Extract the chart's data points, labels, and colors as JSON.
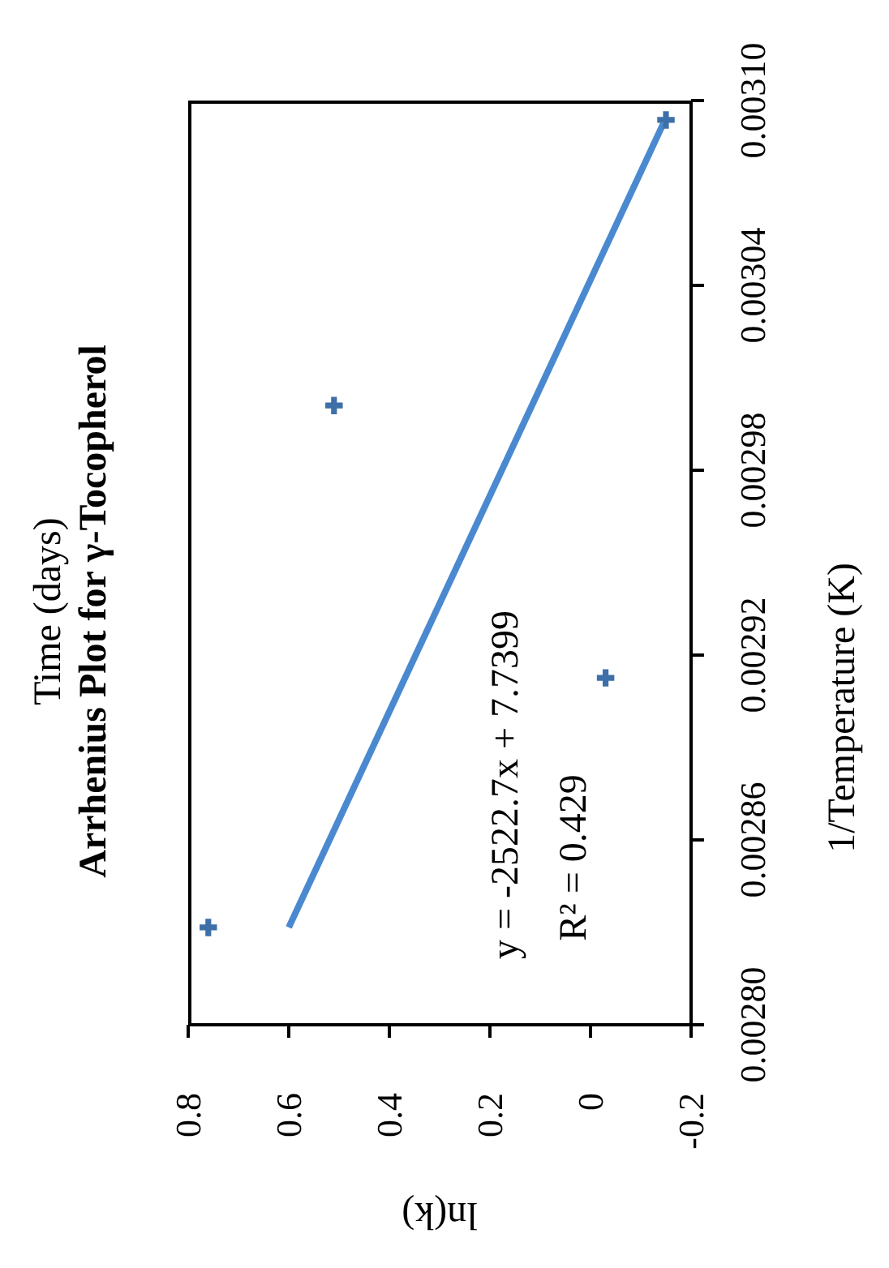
{
  "chart_data": {
    "type": "scatter",
    "subtitle": "Time (days)",
    "title": "Arrhenius Plot for γ-Tocopherol",
    "xlabel": "ln(k)",
    "ylabel": "1/Temperature (K)",
    "annotations": [
      "y = -2522.7x + 7.7399",
      "R² = 0.429"
    ],
    "xlim": [
      0.8,
      -0.2
    ],
    "xticks": [
      0.8,
      0.6,
      0.4,
      0.2,
      0,
      -0.2
    ],
    "ylim": [
      0.0028,
      0.0031
    ],
    "yticks": [
      {
        "value": 0.0028,
        "label": "0.00280"
      },
      {
        "value": 0.00286,
        "label": "0.00286"
      },
      {
        "value": 0.00292,
        "label": "0.00292"
      },
      {
        "value": 0.00298,
        "label": "0.00298"
      },
      {
        "value": 0.00304,
        "label": "0.00304"
      },
      {
        "value": 0.0031,
        "label": "0.00310"
      }
    ],
    "series": [
      {
        "type": "scatter",
        "marker": "cross",
        "color": "#3d6fa8",
        "x": [
          0.76,
          -0.03,
          0.51,
          -0.15
        ],
        "values": [
          0.0028316,
          0.0029126,
          0.003001,
          0.0030937
        ]
      },
      {
        "type": "line",
        "color": "#4a89cf",
        "x": [
          0.6,
          -0.145
        ],
        "values": [
          0.0028316,
          0.0030926
        ]
      }
    ]
  }
}
